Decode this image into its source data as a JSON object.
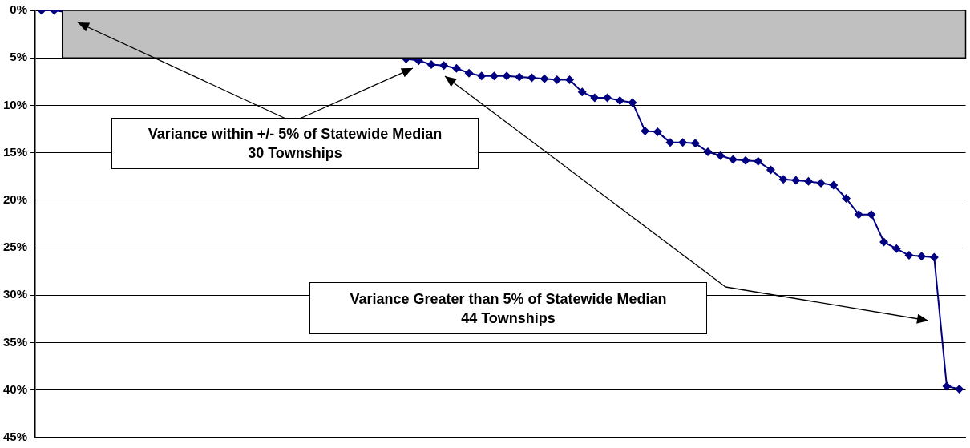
{
  "chart_data": {
    "type": "line",
    "categories": [
      null,
      null,
      null,
      null,
      null,
      null,
      null,
      null,
      null,
      null,
      null,
      null,
      null,
      null,
      null,
      null,
      null,
      null,
      null,
      null,
      null,
      null,
      null,
      null,
      null,
      null,
      null,
      null,
      null,
      null,
      null,
      null,
      null,
      null,
      null,
      null,
      null,
      null,
      null,
      null,
      null,
      null,
      null,
      null,
      null,
      null,
      null,
      null,
      null,
      null,
      null,
      null,
      null,
      null,
      null,
      null,
      null,
      null,
      null,
      null,
      null,
      null,
      null,
      null,
      null,
      null,
      null,
      null,
      null,
      null,
      null,
      null,
      null,
      null
    ],
    "series": [
      {
        "color": "#000080",
        "values": [
          0,
          0,
          null,
          null,
          null,
          null,
          null,
          null,
          null,
          null,
          null,
          null,
          null,
          null,
          null,
          null,
          null,
          null,
          null,
          null,
          null,
          null,
          null,
          null,
          null,
          null,
          null,
          null,
          null,
          5.1,
          5.3,
          5.7,
          5.8,
          6.1,
          6.6,
          6.9,
          6.9,
          6.9,
          7.0,
          7.1,
          7.2,
          7.3,
          7.3,
          8.6,
          9.2,
          9.2,
          9.5,
          9.7,
          12.7,
          12.8,
          13.9,
          13.9,
          14.0,
          14.9,
          15.3,
          15.7,
          15.8,
          15.9,
          16.8,
          17.8,
          17.9,
          18.0,
          18.2,
          18.4,
          19.8,
          21.5,
          21.5,
          24.4,
          25.1,
          25.8,
          25.9,
          26.0,
          39.6,
          39.9
        ]
      }
    ],
    "ylim": [
      45,
      0
    ],
    "yticks": [
      {
        "value": 0,
        "label": "0%"
      },
      {
        "value": 5,
        "label": "5%"
      },
      {
        "value": 10,
        "label": "10%"
      },
      {
        "value": 15,
        "label": "15%"
      },
      {
        "value": 20,
        "label": "20%"
      },
      {
        "value": 25,
        "label": "25%"
      },
      {
        "value": 30,
        "label": "30%"
      },
      {
        "value": 35,
        "label": "35%"
      },
      {
        "value": 40,
        "label": "40%"
      },
      {
        "value": 45,
        "label": "45%"
      }
    ],
    "grid": "y",
    "legend": false,
    "marker": "diamond",
    "line_style": "solid",
    "bands": [
      {
        "axis": "y",
        "from": 0,
        "to": 5,
        "color": "#c0c0c0"
      }
    ],
    "annotations": [
      "Variance within +/- 5% of Statewide Median\n30 Townships",
      "Variance Greater than 5% of Statewide Median\n44 Townships"
    ]
  }
}
